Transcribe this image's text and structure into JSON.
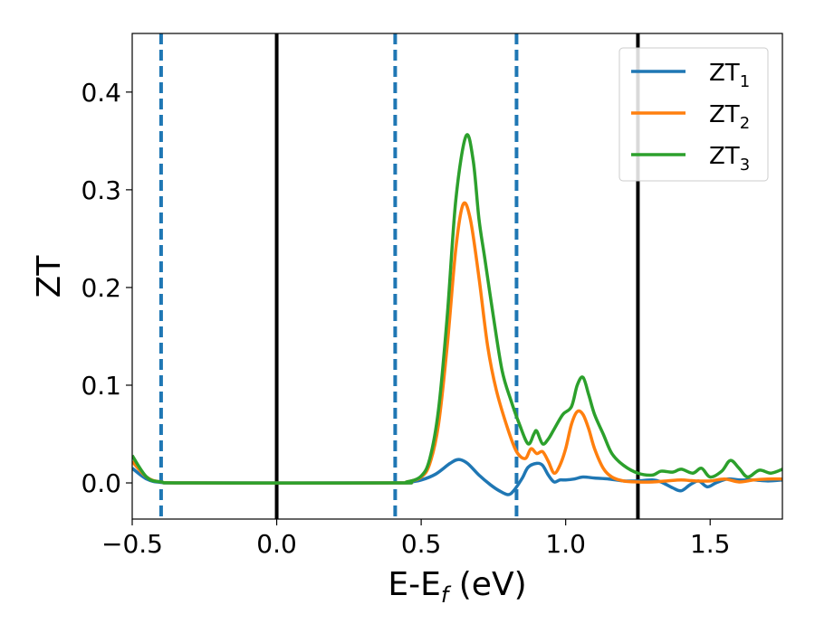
{
  "chart_data": {
    "type": "line",
    "xlabel_main": "E-E",
    "xlabel_sub": "f",
    "xlabel_tail": " (eV)",
    "ylabel": "ZT",
    "xlim": [
      -0.5,
      1.75
    ],
    "ylim": [
      -0.037,
      0.46
    ],
    "x_ticks": [
      -0.5,
      0.0,
      0.5,
      1.0,
      1.5
    ],
    "x_tick_labels": [
      "−0.5",
      "0.0",
      "0.5",
      "1.0",
      "1.5"
    ],
    "y_ticks": [
      0.0,
      0.1,
      0.2,
      0.3,
      0.4
    ],
    "y_tick_labels": [
      "0.0",
      "0.1",
      "0.2",
      "0.3",
      "0.4"
    ],
    "grid": false,
    "legend_position": "top-right",
    "vlines": [
      {
        "x": -0.4,
        "style": "dashed",
        "color": "#1f77b4"
      },
      {
        "x": 0.0,
        "style": "solid",
        "color": "#000000"
      },
      {
        "x": 0.41,
        "style": "dashed",
        "color": "#1f77b4"
      },
      {
        "x": 0.83,
        "style": "dashed",
        "color": "#1f77b4"
      },
      {
        "x": 1.25,
        "style": "solid",
        "color": "#000000"
      }
    ],
    "series": [
      {
        "name": "ZT",
        "subscript": "1",
        "color": "#1f77b4",
        "points": [
          [
            -0.5,
            0.015
          ],
          [
            -0.45,
            0.004
          ],
          [
            -0.4,
            0.0005
          ],
          [
            -0.3,
            0
          ],
          [
            0.4,
            0
          ],
          [
            0.45,
            0.0005
          ],
          [
            0.5,
            0.003
          ],
          [
            0.55,
            0.009
          ],
          [
            0.6,
            0.02
          ],
          [
            0.63,
            0.024
          ],
          [
            0.66,
            0.02
          ],
          [
            0.7,
            0.008
          ],
          [
            0.74,
            -0.002
          ],
          [
            0.77,
            -0.008
          ],
          [
            0.8,
            -0.012
          ],
          [
            0.82,
            -0.008
          ],
          [
            0.85,
            0.005
          ],
          [
            0.87,
            0.016
          ],
          [
            0.9,
            0.02
          ],
          [
            0.92,
            0.018
          ],
          [
            0.94,
            0.008
          ],
          [
            0.96,
            0.001
          ],
          [
            0.98,
            0.003
          ],
          [
            1.0,
            0.003
          ],
          [
            1.03,
            0.004
          ],
          [
            1.06,
            0.006
          ],
          [
            1.1,
            0.005
          ],
          [
            1.15,
            0.004
          ],
          [
            1.2,
            0.002
          ],
          [
            1.25,
            0.002
          ],
          [
            1.3,
            0.003
          ],
          [
            1.33,
            0.001
          ],
          [
            1.37,
            -0.005
          ],
          [
            1.4,
            -0.008
          ],
          [
            1.43,
            -0.002
          ],
          [
            1.46,
            0.002
          ],
          [
            1.49,
            -0.004
          ],
          [
            1.52,
            0.0
          ],
          [
            1.56,
            0.004
          ],
          [
            1.6,
            0.003
          ],
          [
            1.65,
            0.003
          ],
          [
            1.7,
            0.002
          ],
          [
            1.75,
            0.003
          ]
        ]
      },
      {
        "name": "ZT",
        "subscript": "2",
        "color": "#ff7f0e",
        "points": [
          [
            -0.5,
            0.022
          ],
          [
            -0.45,
            0.006
          ],
          [
            -0.4,
            0.001
          ],
          [
            -0.3,
            0
          ],
          [
            0.4,
            0
          ],
          [
            0.45,
            0.001
          ],
          [
            0.5,
            0.006
          ],
          [
            0.53,
            0.02
          ],
          [
            0.56,
            0.06
          ],
          [
            0.59,
            0.14
          ],
          [
            0.62,
            0.24
          ],
          [
            0.645,
            0.285
          ],
          [
            0.67,
            0.27
          ],
          [
            0.7,
            0.21
          ],
          [
            0.73,
            0.14
          ],
          [
            0.76,
            0.095
          ],
          [
            0.8,
            0.055
          ],
          [
            0.83,
            0.032
          ],
          [
            0.86,
            0.025
          ],
          [
            0.88,
            0.035
          ],
          [
            0.9,
            0.03
          ],
          [
            0.92,
            0.032
          ],
          [
            0.94,
            0.022
          ],
          [
            0.96,
            0.01
          ],
          [
            0.98,
            0.018
          ],
          [
            1.0,
            0.035
          ],
          [
            1.02,
            0.06
          ],
          [
            1.04,
            0.073
          ],
          [
            1.06,
            0.07
          ],
          [
            1.08,
            0.055
          ],
          [
            1.1,
            0.035
          ],
          [
            1.13,
            0.015
          ],
          [
            1.16,
            0.006
          ],
          [
            1.2,
            0.002
          ],
          [
            1.25,
            0.001
          ],
          [
            1.3,
            0.001
          ],
          [
            1.35,
            0.002
          ],
          [
            1.4,
            0.003
          ],
          [
            1.45,
            0.002
          ],
          [
            1.5,
            0.002
          ],
          [
            1.55,
            0.004
          ],
          [
            1.6,
            0.001
          ],
          [
            1.65,
            0.003
          ],
          [
            1.7,
            0.004
          ],
          [
            1.75,
            0.004
          ]
        ]
      },
      {
        "name": "ZT",
        "subscript": "3",
        "color": "#2ca02c",
        "points": [
          [
            -0.5,
            0.028
          ],
          [
            -0.45,
            0.006
          ],
          [
            -0.4,
            0.001
          ],
          [
            -0.3,
            0
          ],
          [
            0.4,
            0
          ],
          [
            0.45,
            0.001
          ],
          [
            0.5,
            0.007
          ],
          [
            0.53,
            0.025
          ],
          [
            0.56,
            0.075
          ],
          [
            0.59,
            0.17
          ],
          [
            0.62,
            0.29
          ],
          [
            0.655,
            0.355
          ],
          [
            0.68,
            0.33
          ],
          [
            0.7,
            0.27
          ],
          [
            0.72,
            0.23
          ],
          [
            0.75,
            0.17
          ],
          [
            0.78,
            0.115
          ],
          [
            0.81,
            0.085
          ],
          [
            0.84,
            0.06
          ],
          [
            0.87,
            0.04
          ],
          [
            0.89,
            0.05
          ],
          [
            0.9,
            0.053
          ],
          [
            0.92,
            0.04
          ],
          [
            0.94,
            0.045
          ],
          [
            0.96,
            0.055
          ],
          [
            0.99,
            0.07
          ],
          [
            1.02,
            0.078
          ],
          [
            1.04,
            0.1
          ],
          [
            1.06,
            0.108
          ],
          [
            1.08,
            0.09
          ],
          [
            1.1,
            0.07
          ],
          [
            1.13,
            0.05
          ],
          [
            1.16,
            0.03
          ],
          [
            1.2,
            0.018
          ],
          [
            1.25,
            0.01
          ],
          [
            1.3,
            0.008
          ],
          [
            1.33,
            0.012
          ],
          [
            1.37,
            0.011
          ],
          [
            1.4,
            0.014
          ],
          [
            1.44,
            0.01
          ],
          [
            1.47,
            0.015
          ],
          [
            1.5,
            0.006
          ],
          [
            1.54,
            0.012
          ],
          [
            1.57,
            0.023
          ],
          [
            1.6,
            0.015
          ],
          [
            1.63,
            0.006
          ],
          [
            1.67,
            0.013
          ],
          [
            1.71,
            0.01
          ],
          [
            1.75,
            0.014
          ]
        ]
      }
    ]
  }
}
